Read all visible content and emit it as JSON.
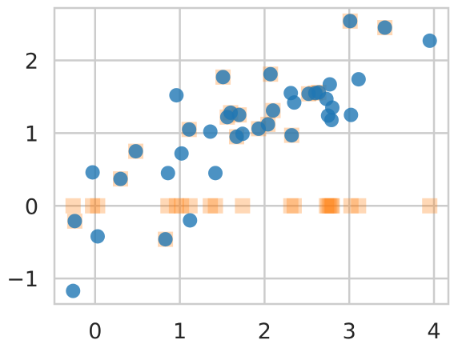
{
  "chart_data": {
    "type": "scatter",
    "title": "",
    "xlabel": "",
    "ylabel": "",
    "xlim": [
      -0.48,
      4.17
    ],
    "ylim": [
      -1.35,
      2.72
    ],
    "grid": true,
    "x_ticks": [
      0,
      1,
      2,
      3,
      4
    ],
    "x_tick_labels": [
      "0",
      "1",
      "2",
      "3",
      "4"
    ],
    "y_ticks": [
      -1,
      0,
      1,
      2
    ],
    "y_tick_labels": [
      "−1",
      "0",
      "1",
      "2"
    ],
    "colors": {
      "series_0": "#1f77b4",
      "series_1": "#ff7f0e",
      "grid": "#cccccc",
      "spine": "#cccccc",
      "text": "#262626"
    },
    "series": [
      {
        "marker": "circle",
        "color": "#1f77b4",
        "x": [
          -0.26,
          -0.24,
          -0.03,
          0.03,
          0.3,
          0.48,
          0.83,
          0.86,
          0.96,
          1.02,
          1.11,
          1.12,
          1.36,
          1.42,
          1.51,
          1.56,
          1.6,
          1.67,
          1.7,
          1.74,
          1.93,
          2.04,
          2.07,
          2.1,
          2.31,
          2.32,
          2.35,
          2.52,
          2.6,
          2.64,
          2.73,
          2.75,
          2.77,
          2.79,
          2.8,
          3.01,
          3.02,
          3.11,
          3.42,
          3.95
        ],
        "y": [
          -1.17,
          -0.21,
          0.46,
          -0.42,
          0.37,
          0.75,
          -0.46,
          0.45,
          1.52,
          0.72,
          1.05,
          -0.2,
          1.02,
          0.45,
          1.77,
          1.22,
          1.28,
          0.95,
          1.25,
          0.99,
          1.06,
          1.12,
          1.81,
          1.31,
          1.55,
          0.97,
          1.42,
          1.54,
          1.55,
          1.56,
          1.47,
          1.24,
          1.67,
          1.18,
          1.35,
          2.54,
          1.25,
          1.74,
          2.45,
          2.27
        ]
      },
      {
        "marker": "square",
        "color": "#ff7f0e",
        "x": [
          -0.26,
          -0.24,
          -0.03,
          0.03,
          0.3,
          0.48,
          0.83,
          0.86,
          0.96,
          1.02,
          1.11,
          1.12,
          1.36,
          1.42,
          1.51,
          1.56,
          1.6,
          1.67,
          1.7,
          1.74,
          1.93,
          2.04,
          2.07,
          2.1,
          2.31,
          2.32,
          2.35,
          2.52,
          2.6,
          2.64,
          2.73,
          2.75,
          2.77,
          2.79,
          2.8,
          3.01,
          3.02,
          3.11,
          3.42,
          3.95
        ],
        "y": [
          0,
          -0.21,
          0,
          0,
          0.37,
          0.75,
          -0.46,
          0,
          0,
          0,
          1.05,
          0,
          0,
          0,
          1.77,
          1.22,
          1.28,
          0.95,
          1.25,
          0,
          1.06,
          1.12,
          1.81,
          1.31,
          0,
          0.97,
          0,
          1.54,
          1.55,
          1.56,
          0,
          0,
          0,
          0,
          0,
          2.54,
          0,
          0,
          2.45,
          0
        ]
      }
    ]
  }
}
